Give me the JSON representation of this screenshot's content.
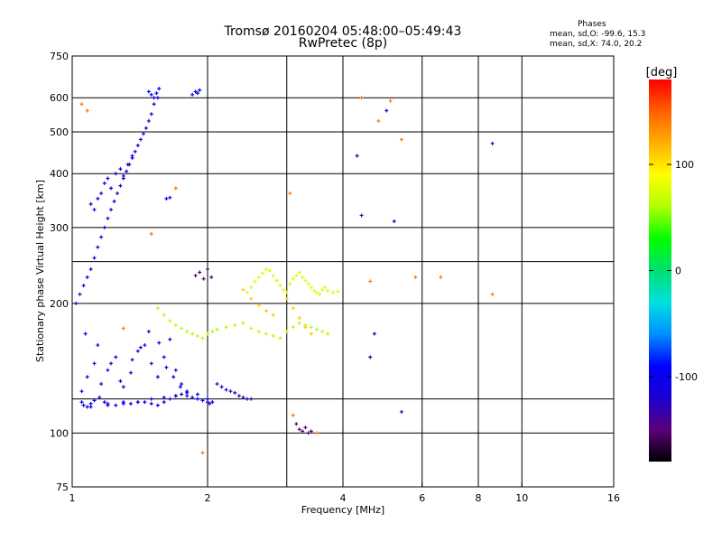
{
  "chart_data": {
    "type": "scatter",
    "title": "Tromsø 20160204 05:48:00–05:49:43",
    "subtitle": "RwPretec (8p)",
    "xlabel": "Frequency [MHz]",
    "ylabel": "Stationary phase Virtual Height [km]",
    "x_scale": "log",
    "y_scale": "log",
    "xlim": [
      1,
      16
    ],
    "ylim": [
      75,
      750
    ],
    "x_ticks": [
      1,
      2,
      4,
      6,
      8,
      10,
      16
    ],
    "y_ticks": [
      75,
      100,
      200,
      300,
      400,
      500,
      600,
      750
    ],
    "x_grid": [
      1,
      2,
      3,
      4,
      6,
      8,
      10,
      16
    ],
    "y_grid": [
      100,
      120,
      200,
      250,
      300,
      400,
      500,
      600
    ],
    "grid": true,
    "color_scale": {
      "label": "[deg]",
      "min": -180,
      "max": 180,
      "ticks": [
        -100,
        0,
        100
      ],
      "colors": [
        "#000000",
        "#5a007a",
        "#1a00d0",
        "#0000ff",
        "#0090ff",
        "#00e0e0",
        "#00e070",
        "#00ff00",
        "#b0ff00",
        "#ffff00",
        "#ffb000",
        "#ff6000",
        "#ff0000"
      ]
    },
    "phases": {
      "title": "Phases",
      "line_o": "mean, sd,O: -99.6, 15.3",
      "line_x": "mean, sd,X:  74.0, 20.2"
    },
    "series": [
      {
        "x": [
          1.05,
          1.06,
          1.08,
          1.1,
          1.12,
          1.15,
          1.18,
          1.2,
          1.25,
          1.3,
          1.35,
          1.4,
          1.45,
          1.5,
          1.55,
          1.6,
          1.65,
          1.7,
          1.75,
          1.8,
          1.85,
          1.9,
          1.95,
          2.0,
          2.02,
          2.05,
          1.1,
          1.2,
          1.3,
          1.4,
          1.5,
          1.6,
          1.7,
          1.8,
          1.9,
          2.0
        ],
        "phase": -105,
        "y": [
          118,
          116,
          115,
          117,
          119,
          121,
          118,
          117,
          116,
          118,
          117,
          118,
          118,
          117,
          116,
          118,
          120,
          122,
          123,
          122,
          121,
          120,
          119,
          118,
          117,
          118,
          115,
          116,
          117,
          118,
          120,
          121,
          122,
          124,
          123,
          120
        ]
      },
      {
        "x": [
          1.05,
          1.08,
          1.12,
          1.16,
          1.2,
          1.25,
          1.3,
          1.35,
          1.4,
          1.45,
          1.5,
          1.55,
          1.6,
          1.65,
          1.7,
          1.75,
          1.8,
          1.07,
          1.14,
          1.22,
          1.28,
          1.36,
          1.42,
          1.48,
          1.56,
          1.62,
          1.68,
          1.74
        ],
        "phase": -110,
        "y": [
          125,
          135,
          145,
          130,
          140,
          150,
          128,
          138,
          155,
          160,
          145,
          135,
          150,
          165,
          140,
          130,
          125,
          170,
          160,
          145,
          132,
          148,
          158,
          172,
          162,
          142,
          135,
          128
        ]
      },
      {
        "x": [
          1.02,
          1.04,
          1.06,
          1.08,
          1.1,
          1.12,
          1.14,
          1.16,
          1.18,
          1.2,
          1.22,
          1.24,
          1.26,
          1.28,
          1.3,
          1.32,
          1.34,
          1.36,
          1.38,
          1.4,
          1.42,
          1.44,
          1.46,
          1.48,
          1.5,
          1.52,
          1.55
        ],
        "phase": -115,
        "y": [
          200,
          210,
          220,
          230,
          240,
          255,
          270,
          285,
          300,
          315,
          330,
          345,
          360,
          375,
          390,
          405,
          420,
          435,
          450,
          465,
          480,
          495,
          510,
          530,
          550,
          580,
          600
        ]
      },
      {
        "x": [
          1.1,
          1.12,
          1.14,
          1.16,
          1.18,
          1.2,
          1.22,
          1.25,
          1.28,
          1.3,
          1.33,
          1.36
        ],
        "phase": -108,
        "y": [
          340,
          330,
          350,
          360,
          380,
          390,
          370,
          400,
          410,
          395,
          420,
          440
        ]
      },
      {
        "x": [
          1.48,
          1.5,
          1.52,
          1.54,
          1.56,
          1.62,
          1.65,
          1.85,
          1.88,
          1.9,
          1.92
        ],
        "phase": -100,
        "y": [
          620,
          610,
          600,
          615,
          630,
          350,
          352,
          610,
          620,
          615,
          625
        ]
      },
      {
        "x": [
          1.55,
          1.6,
          1.65,
          1.7,
          1.75,
          1.8,
          1.85,
          1.9,
          1.95,
          2.0,
          2.05,
          2.1,
          2.2,
          2.3,
          2.4,
          2.5,
          2.6,
          2.7,
          2.8,
          2.9,
          3.0,
          3.1,
          3.2,
          3.3,
          3.4,
          3.5,
          3.6,
          3.7
        ],
        "phase": 60,
        "y": [
          195,
          188,
          182,
          178,
          175,
          172,
          170,
          168,
          166,
          170,
          172,
          174,
          176,
          178,
          180,
          175,
          172,
          170,
          168,
          166,
          172,
          176,
          180,
          178,
          176,
          174,
          172,
          170
        ]
      },
      {
        "x": [
          2.45,
          2.5,
          2.55,
          2.6,
          2.65,
          2.7,
          2.75,
          2.8,
          2.85,
          2.9,
          2.95,
          3.0,
          3.05,
          3.1,
          3.15,
          3.2,
          3.25,
          3.3,
          3.35,
          3.4,
          3.45,
          3.5,
          3.55,
          3.6,
          3.65,
          3.7,
          3.8,
          3.9
        ],
        "phase": 75,
        "y": [
          212,
          218,
          225,
          230,
          235,
          240,
          238,
          232,
          226,
          220,
          215,
          212,
          222,
          228,
          232,
          236,
          230,
          226,
          222,
          218,
          214,
          212,
          210,
          215,
          218,
          214,
          212,
          213
        ]
      },
      {
        "x": [
          2.4,
          2.5,
          2.6,
          2.7,
          2.8,
          3.0,
          3.1,
          3.2,
          3.3,
          3.4
        ],
        "phase": 110,
        "y": [
          215,
          205,
          198,
          192,
          188,
          205,
          195,
          185,
          176,
          170
        ]
      },
      {
        "x": [
          2.1,
          2.15,
          2.2,
          2.25,
          2.3,
          2.35,
          2.4,
          2.45,
          2.5
        ],
        "phase": -130,
        "y": [
          130,
          128,
          126,
          125,
          124,
          122,
          121,
          120,
          120
        ]
      },
      {
        "x": [
          1.88,
          1.92,
          1.96,
          2.0,
          2.04,
          3.15,
          3.2,
          3.25,
          3.3,
          3.35,
          3.4
        ],
        "phase": -150,
        "y": [
          232,
          236,
          228,
          240,
          230,
          105,
          102,
          101,
          103,
          100,
          101
        ]
      },
      {
        "x": [
          1.05,
          1.08,
          1.3,
          1.5,
          1.7,
          1.95,
          3.05,
          3.1,
          3.5,
          4.4,
          4.6,
          4.8,
          5.1,
          5.4,
          5.8,
          6.6,
          8.6
        ],
        "phase": 140,
        "y": [
          580,
          560,
          175,
          290,
          370,
          90,
          360,
          110,
          100,
          600,
          225,
          530,
          590,
          480,
          230,
          230,
          210
        ]
      },
      {
        "x": [
          4.3,
          4.4,
          4.6,
          4.7,
          5.0,
          5.2,
          5.4,
          8.6
        ],
        "phase": -125,
        "y": [
          440,
          320,
          150,
          170,
          560,
          310,
          112,
          470
        ]
      }
    ]
  }
}
